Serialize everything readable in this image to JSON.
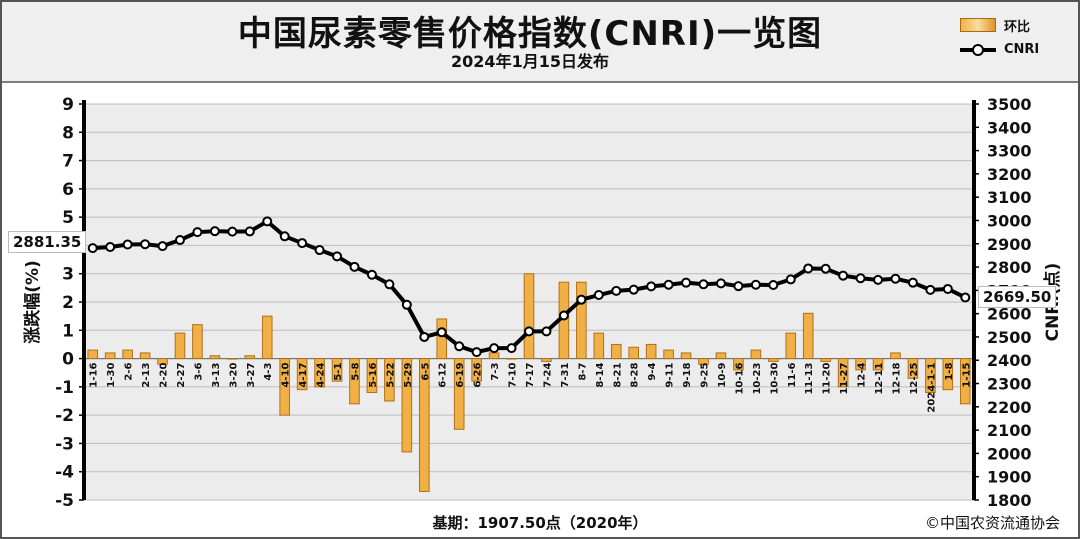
{
  "title": "中国尿素零售价格指数(CNRI)一览图",
  "subtitle": "2024年1月15日发布",
  "legend": {
    "bar_label": "环比",
    "line_label": "CNRI"
  },
  "footer": {
    "base": "基期：1907.50点（2020年）",
    "copyright": "©中国农资流通协会"
  },
  "callouts": {
    "start": "2881.35",
    "end": "2669.50"
  },
  "colors": {
    "bar": "#f0b046",
    "bar_edge": "#b07018",
    "line": "#000000",
    "grid": "#bdbdbd",
    "plot_bg": "#ececec"
  },
  "chart_data": {
    "type": "bar+line",
    "categories": [
      "1-16",
      "1-30",
      "2-6",
      "2-13",
      "2-20",
      "2-27",
      "3-6",
      "3-13",
      "3-20",
      "3-27",
      "4-3",
      "4-10",
      "4-17",
      "4-24",
      "5-1",
      "5-8",
      "5-16",
      "5-22",
      "5-29",
      "6-5",
      "6-12",
      "6-19",
      "6-26",
      "7-3",
      "7-10",
      "7-17",
      "7-24",
      "7-31",
      "8-7",
      "8-14",
      "8-21",
      "8-28",
      "9-4",
      "9-11",
      "9-18",
      "9-25",
      "10-9",
      "10-16",
      "10-23",
      "10-30",
      "11-6",
      "11-13",
      "11-20",
      "11-27",
      "12-4",
      "12-11",
      "12-18",
      "12-25",
      "2024-1-1",
      "1-8",
      "1-15"
    ],
    "series": [
      {
        "name": "环比",
        "axis": "left",
        "values": [
          0.3,
          0.2,
          0.3,
          0.2,
          -0.2,
          0.9,
          1.2,
          0.1,
          0.0,
          0.1,
          1.5,
          -2.0,
          -1.1,
          -1.0,
          -0.8,
          -1.6,
          -1.2,
          -1.5,
          -3.3,
          -4.7,
          1.4,
          -2.5,
          -0.8,
          0.2,
          0.0,
          3.0,
          -0.1,
          2.7,
          2.7,
          0.9,
          0.5,
          0.4,
          0.5,
          0.3,
          0.2,
          -0.2,
          0.2,
          -0.4,
          0.3,
          -0.1,
          0.9,
          1.6,
          -0.1,
          -1.0,
          -0.4,
          -0.4,
          0.2,
          -0.7,
          -1.2,
          -1.1,
          -1.6
        ]
      },
      {
        "name": "CNRI",
        "axis": "right",
        "values": [
          2881.35,
          2886,
          2897,
          2898,
          2890,
          2916,
          2950,
          2954,
          2952,
          2953,
          2996,
          2932,
          2903,
          2873,
          2846,
          2801,
          2767,
          2726,
          2638,
          2500,
          2520,
          2460,
          2435,
          2452,
          2452,
          2524,
          2524,
          2592,
          2660,
          2680,
          2698,
          2703,
          2717,
          2724,
          2733,
          2726,
          2730,
          2718,
          2724,
          2723,
          2747,
          2794,
          2793,
          2763,
          2752,
          2745,
          2750,
          2733,
          2702,
          2706,
          2669.5
        ]
      }
    ],
    "ylabel": "涨跌幅(%)",
    "y2label": "CNRI(点)",
    "ylim": [
      -5,
      9
    ],
    "y2lim": [
      1800,
      3500
    ],
    "yticks": [
      -5,
      -4,
      -3,
      -2,
      -1,
      0,
      1,
      2,
      3,
      4,
      5,
      6,
      7,
      8,
      9
    ],
    "y2ticks": [
      1800,
      1900,
      2000,
      2100,
      2200,
      2300,
      2400,
      2500,
      2600,
      2700,
      2800,
      2900,
      3000,
      3100,
      3200,
      3300,
      3400,
      3500
    ],
    "grid": true,
    "legend_position": "top-right"
  }
}
